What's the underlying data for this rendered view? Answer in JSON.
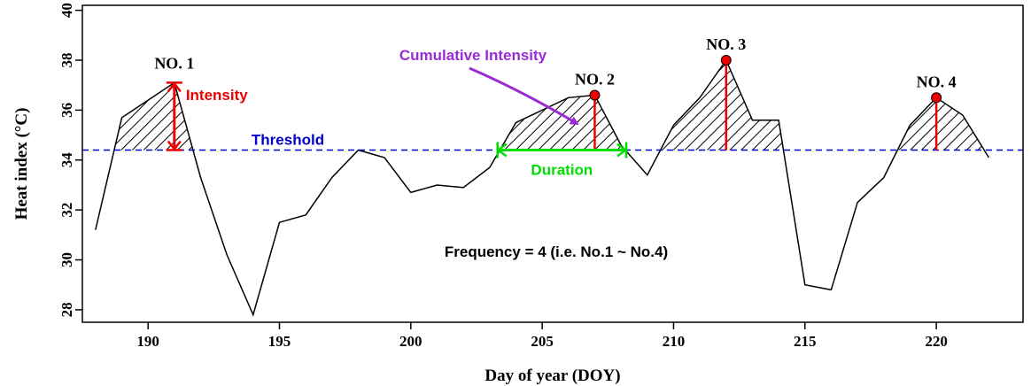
{
  "chart_data": {
    "type": "line",
    "xlabel": "Day of year (DOY)",
    "ylabel": "Heat index (°C)",
    "xlim": [
      187.5,
      223.3
    ],
    "ylim": [
      27.5,
      40.2
    ],
    "xticks": [
      190,
      195,
      200,
      205,
      210,
      215,
      220
    ],
    "yticks": [
      28,
      30,
      32,
      34,
      36,
      38,
      40
    ],
    "grid": false,
    "series": [
      {
        "x": [
          188,
          189,
          191,
          192,
          193,
          194,
          195,
          196,
          197,
          198,
          199,
          200,
          201,
          202,
          203,
          204,
          206,
          207,
          208,
          209,
          210,
          211,
          212,
          213,
          214,
          215,
          216,
          217,
          218,
          219,
          220,
          221,
          222
        ],
        "y": [
          31.2,
          35.7,
          37.1,
          33.3,
          30.2,
          27.8,
          31.5,
          31.8,
          33.3,
          34.4,
          34.1,
          32.7,
          33.0,
          32.9,
          33.7,
          35.5,
          36.5,
          36.6,
          34.6,
          33.4,
          35.4,
          36.5,
          38.0,
          35.6,
          35.6,
          29.0,
          28.8,
          32.3,
          33.3,
          35.4,
          36.5,
          35.8,
          34.1
        ]
      }
    ],
    "threshold": {
      "value": 34.4,
      "label": "Threshold",
      "color": "#0000cc"
    },
    "events": [
      {
        "label": "NO. 1",
        "peak_x": 191,
        "peak_y": 37.1,
        "marker": false
      },
      {
        "label": "NO. 2",
        "peak_x": 207,
        "peak_y": 36.6,
        "marker": true
      },
      {
        "label": "NO. 3",
        "peak_x": 212,
        "peak_y": 38.0,
        "marker": true
      },
      {
        "label": "NO. 4",
        "peak_x": 220,
        "peak_y": 36.5,
        "marker": true
      }
    ],
    "annotations": {
      "intensity": {
        "label": "Intensity",
        "color": "#ee0000"
      },
      "duration": {
        "label": "Duration",
        "color": "#00dd00",
        "x_start": 203.3,
        "x_end": 208.2
      },
      "cumulative_intensity": {
        "label": "Cumulative Intensity",
        "color": "#9a2bd6"
      },
      "frequency": {
        "label": "Frequency = 4 (i.e. No.1 ~ No.4)"
      }
    }
  }
}
